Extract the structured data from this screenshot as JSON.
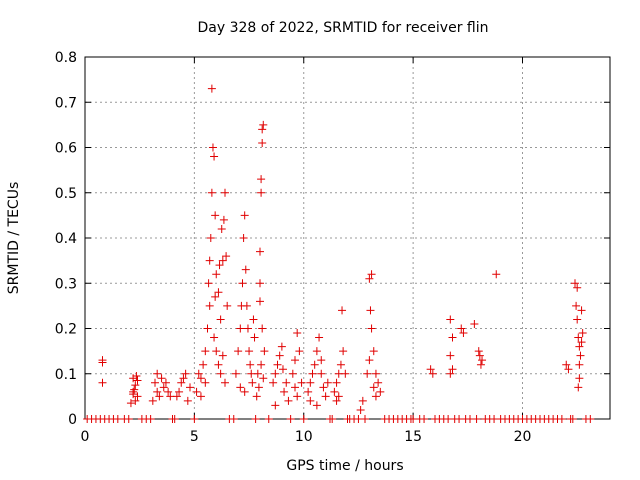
{
  "chart_data": {
    "type": "scatter",
    "title": "Day 328 of 2022, SRMTID for receiver flin",
    "xlabel": "GPS time / hours",
    "ylabel": "SRMTID / TECUs",
    "xlim": [
      0,
      24
    ],
    "ylim": [
      0,
      0.8
    ],
    "xticks": [
      0,
      5,
      10,
      15,
      20
    ],
    "yticks": [
      0,
      0.1,
      0.2,
      0.3,
      0.4,
      0.5,
      0.6,
      0.7,
      0.8
    ],
    "xtick_labels": [
      "0",
      "5",
      "10",
      "15",
      "20"
    ],
    "ytick_labels": [
      "0",
      "0.1",
      "0.2",
      "0.3",
      "0.4",
      "0.5",
      "0.6",
      "0.7",
      "0.8"
    ],
    "grid": true,
    "marker": "+",
    "series": [
      {
        "name": "SRMTID",
        "color": "#e00000",
        "points": [
          [
            0.8,
            0.13
          ],
          [
            0.8,
            0.125
          ],
          [
            0.8,
            0.08
          ],
          [
            2.2,
            0.09
          ],
          [
            2.3,
            0.075
          ],
          [
            2.2,
            0.06
          ],
          [
            2.4,
            0.05
          ],
          [
            2.3,
            0.04
          ],
          [
            2.1,
            0.035
          ],
          [
            2.4,
            0.085
          ],
          [
            2.25,
            0.065
          ],
          [
            2.35,
            0.095
          ],
          [
            2.2,
            0.055
          ],
          [
            3.2,
            0.08
          ],
          [
            3.3,
            0.06
          ],
          [
            3.4,
            0.05
          ],
          [
            3.5,
            0.09
          ],
          [
            3.1,
            0.04
          ],
          [
            3.6,
            0.07
          ],
          [
            3.8,
            0.06
          ],
          [
            3.9,
            0.05
          ],
          [
            3.7,
            0.08
          ],
          [
            3.3,
            0.1
          ],
          [
            4.3,
            0.06
          ],
          [
            4.5,
            0.09
          ],
          [
            4.6,
            0.1
          ],
          [
            4.2,
            0.05
          ],
          [
            4.8,
            0.07
          ],
          [
            4.4,
            0.08
          ],
          [
            4.7,
            0.04
          ],
          [
            5.1,
            0.06
          ],
          [
            5.2,
            0.1
          ],
          [
            5.3,
            0.09
          ],
          [
            5.4,
            0.12
          ],
          [
            5.5,
            0.15
          ],
          [
            5.6,
            0.2
          ],
          [
            5.5,
            0.08
          ],
          [
            5.3,
            0.05
          ],
          [
            5.7,
            0.25
          ],
          [
            5.65,
            0.3
          ],
          [
            5.7,
            0.35
          ],
          [
            5.75,
            0.4
          ],
          [
            5.8,
            0.5
          ],
          [
            5.85,
            0.6
          ],
          [
            5.8,
            0.73
          ],
          [
            5.9,
            0.58
          ],
          [
            5.95,
            0.45
          ],
          [
            6.0,
            0.32
          ],
          [
            6.1,
            0.28
          ],
          [
            6.2,
            0.22
          ],
          [
            6.3,
            0.35
          ],
          [
            6.35,
            0.44
          ],
          [
            6.4,
            0.5
          ],
          [
            6.45,
            0.36
          ],
          [
            6.5,
            0.25
          ],
          [
            6.0,
            0.15
          ],
          [
            6.1,
            0.12
          ],
          [
            6.2,
            0.1
          ],
          [
            6.3,
            0.14
          ],
          [
            6.4,
            0.08
          ],
          [
            5.9,
            0.18
          ],
          [
            5.95,
            0.27
          ],
          [
            6.15,
            0.34
          ],
          [
            6.25,
            0.42
          ],
          [
            6.9,
            0.1
          ],
          [
            7.0,
            0.15
          ],
          [
            7.1,
            0.2
          ],
          [
            7.15,
            0.25
          ],
          [
            7.2,
            0.3
          ],
          [
            7.25,
            0.4
          ],
          [
            7.3,
            0.45
          ],
          [
            7.35,
            0.33
          ],
          [
            7.4,
            0.25
          ],
          [
            7.45,
            0.2
          ],
          [
            7.5,
            0.15
          ],
          [
            7.55,
            0.12
          ],
          [
            7.6,
            0.1
          ],
          [
            7.65,
            0.08
          ],
          [
            7.7,
            0.22
          ],
          [
            7.75,
            0.18
          ],
          [
            7.1,
            0.07
          ],
          [
            7.3,
            0.06
          ],
          [
            7.9,
            0.1
          ],
          [
            8.0,
            0.3
          ],
          [
            8.0,
            0.37
          ],
          [
            8.05,
            0.5
          ],
          [
            8.05,
            0.53
          ],
          [
            8.1,
            0.61
          ],
          [
            8.1,
            0.64
          ],
          [
            8.15,
            0.65
          ],
          [
            8.0,
            0.26
          ],
          [
            8.1,
            0.2
          ],
          [
            8.2,
            0.15
          ],
          [
            7.95,
            0.07
          ],
          [
            8.15,
            0.09
          ],
          [
            7.85,
            0.05
          ],
          [
            8.05,
            0.12
          ],
          [
            8.6,
            0.08
          ],
          [
            8.7,
            0.1
          ],
          [
            8.8,
            0.12
          ],
          [
            8.9,
            0.14
          ],
          [
            9.0,
            0.16
          ],
          [
            9.1,
            0.06
          ],
          [
            9.2,
            0.08
          ],
          [
            9.3,
            0.04
          ],
          [
            8.7,
            0.03
          ],
          [
            9.05,
            0.11
          ],
          [
            9.5,
            0.1
          ],
          [
            9.6,
            0.13
          ],
          [
            9.7,
            0.19
          ],
          [
            9.8,
            0.15
          ],
          [
            9.6,
            0.07
          ],
          [
            9.9,
            0.08
          ],
          [
            9.7,
            0.05
          ],
          [
            10.2,
            0.06
          ],
          [
            10.3,
            0.08
          ],
          [
            10.4,
            0.1
          ],
          [
            10.5,
            0.12
          ],
          [
            10.6,
            0.15
          ],
          [
            10.7,
            0.18
          ],
          [
            10.8,
            0.1
          ],
          [
            10.9,
            0.07
          ],
          [
            11.0,
            0.05
          ],
          [
            11.1,
            0.08
          ],
          [
            10.3,
            0.04
          ],
          [
            10.6,
            0.03
          ],
          [
            10.8,
            0.13
          ],
          [
            11.4,
            0.06
          ],
          [
            11.5,
            0.08
          ],
          [
            11.6,
            0.1
          ],
          [
            11.7,
            0.12
          ],
          [
            11.75,
            0.24
          ],
          [
            11.8,
            0.15
          ],
          [
            11.9,
            0.1
          ],
          [
            11.6,
            0.05
          ],
          [
            11.5,
            0.04
          ],
          [
            12.6,
            0.02
          ],
          [
            12.7,
            0.04
          ],
          [
            12.9,
            0.1
          ],
          [
            13.0,
            0.31
          ],
          [
            13.1,
            0.32
          ],
          [
            13.05,
            0.24
          ],
          [
            13.1,
            0.2
          ],
          [
            13.2,
            0.15
          ],
          [
            13.3,
            0.1
          ],
          [
            13.4,
            0.08
          ],
          [
            13.5,
            0.06
          ],
          [
            13.0,
            0.13
          ],
          [
            13.2,
            0.07
          ],
          [
            13.3,
            0.05
          ],
          [
            15.8,
            0.11
          ],
          [
            15.9,
            0.1
          ],
          [
            16.7,
            0.22
          ],
          [
            16.8,
            0.18
          ],
          [
            16.7,
            0.14
          ],
          [
            16.8,
            0.11
          ],
          [
            16.7,
            0.1
          ],
          [
            17.2,
            0.2
          ],
          [
            17.3,
            0.19
          ],
          [
            17.8,
            0.21
          ],
          [
            18.0,
            0.15
          ],
          [
            18.05,
            0.14
          ],
          [
            18.1,
            0.12
          ],
          [
            18.15,
            0.13
          ],
          [
            18.8,
            0.32
          ],
          [
            22.0,
            0.12
          ],
          [
            22.1,
            0.11
          ],
          [
            22.4,
            0.3
          ],
          [
            22.5,
            0.29
          ],
          [
            22.45,
            0.25
          ],
          [
            22.5,
            0.22
          ],
          [
            22.55,
            0.18
          ],
          [
            22.6,
            0.16
          ],
          [
            22.65,
            0.14
          ],
          [
            22.6,
            0.12
          ],
          [
            22.7,
            0.17
          ],
          [
            22.75,
            0.19
          ],
          [
            22.6,
            0.09
          ],
          [
            22.55,
            0.07
          ],
          [
            22.7,
            0.24
          ]
        ],
        "zero_baseline_hours": [
          0.1,
          0.3,
          0.5,
          0.7,
          0.9,
          1.1,
          1.3,
          1.5,
          1.8,
          2.0,
          2.6,
          2.8,
          3.0,
          4.0,
          4.1,
          5.0,
          6.6,
          6.8,
          7.8,
          8.4,
          9.4,
          10.0,
          11.2,
          11.3,
          12.0,
          12.1,
          12.3,
          12.5,
          12.8,
          13.7,
          13.9,
          14.1,
          14.3,
          14.5,
          14.7,
          14.9,
          15.0,
          15.3,
          15.5,
          16.0,
          16.2,
          16.4,
          16.6,
          16.9,
          17.1,
          17.4,
          17.6,
          17.9,
          18.3,
          18.5,
          18.7,
          19.0,
          19.2,
          19.4,
          19.6,
          19.8,
          20.0,
          20.2,
          20.4,
          20.6,
          20.8,
          21.0,
          21.2,
          21.4,
          21.6,
          21.8,
          22.2,
          22.3,
          22.9,
          23.1
        ]
      }
    ]
  }
}
